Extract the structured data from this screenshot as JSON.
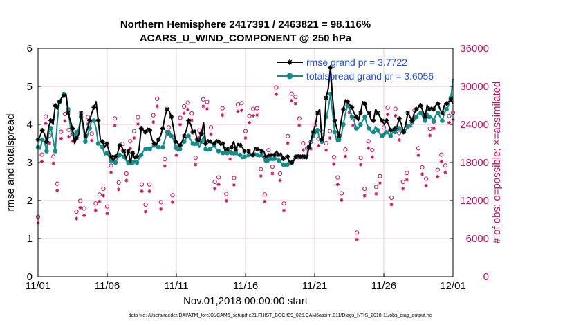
{
  "chart_data": {
    "type": "line",
    "title": [
      "Northern Hemisphere 2417391 / 2463821 = 98.116%",
      "ACARS_U_WIND_COMPONENT @ 250 hPa"
    ],
    "xlabel": "Nov.01,2018 00:00:00 start",
    "ylabel_left": "rmse and totalspread",
    "ylabel_right": "# of obs: o=possible; ×=assimilated",
    "x_ticks": [
      "11/01",
      "11/06",
      "11/11",
      "11/16",
      "11/21",
      "11/26",
      "12/01"
    ],
    "xlim_days": [
      0,
      30
    ],
    "ylim_left": [
      0,
      6
    ],
    "y_ticks_left": [
      "0",
      "1",
      "2",
      "3",
      "4",
      "5",
      "6"
    ],
    "ylim_right": [
      0,
      36000
    ],
    "y_ticks_right": [
      "0",
      "6000",
      "12000",
      "18000",
      "24000",
      "30000",
      "36000"
    ],
    "footnote": "data file: /Users/raeder/DAI/ATM_forcXX/CAM6_setup/f.e21.FHIST_BGC.f09_025.CAM6assim.011/Diags_NTrS_2018-11/obs_diag_output.nc",
    "colors": {
      "rmse": "#000000",
      "spread": "#138b8b",
      "obs": "#c0125e",
      "legend_text": "#1f4fe0"
    },
    "series": [
      {
        "name": "rmse",
        "legend": "rmse grand pr = 3.7722",
        "values": [
          3.6,
          3.7,
          3.85,
          3.75,
          3.55,
          3.95,
          4.1,
          4.0,
          4.5,
          4.4,
          4.6,
          4.7,
          4.75,
          4.8,
          4.3,
          4.1,
          3.9,
          3.5,
          3.65,
          3.75,
          4.3,
          4.0,
          3.7,
          3.9,
          4.1,
          4.3,
          4.45,
          4.6,
          4.1,
          3.6,
          3.55,
          3.4,
          3.5,
          3.3,
          3.15,
          3.05,
          3.15,
          3.25,
          3.45,
          3.4,
          3.3,
          3.1,
          3.3,
          3.0,
          3.25,
          3.1,
          3.15,
          3.35,
          3.9,
          3.85,
          3.8,
          3.9,
          3.85,
          3.6,
          3.5,
          3.45,
          3.6,
          3.7,
          3.9,
          4.2,
          4.4,
          4.35,
          4.2,
          3.9,
          3.55,
          3.5,
          3.45,
          3.55,
          3.7,
          3.85,
          4.1,
          4.0,
          3.8,
          3.85,
          3.6,
          3.55,
          3.75,
          4.05,
          3.5,
          3.6,
          3.55,
          3.5,
          3.5,
          3.6,
          3.55,
          3.45,
          3.5,
          3.3,
          3.35,
          3.35,
          3.4,
          3.55,
          3.35,
          3.5,
          3.45,
          3.4,
          3.3,
          3.3,
          3.3,
          3.2,
          3.2,
          3.4,
          3.35,
          3.35,
          3.3,
          3.3,
          3.15,
          3.2,
          3.2,
          3.2,
          3.2,
          3.3,
          3.2,
          3.25,
          3.1,
          3.1,
          3.15,
          3.0,
          3.0,
          3.05,
          3.15,
          3.2,
          3.15,
          3.2,
          3.15,
          3.1,
          3.4,
          3.6,
          3.8,
          4.0,
          4.3,
          4.4,
          3.6,
          3.7,
          4.7,
          4.95,
          5.5,
          4.7,
          4.1,
          3.9,
          3.7,
          4.1,
          4.4,
          4.65,
          4.6,
          4.5,
          4.45,
          4.3,
          4.2,
          4.1,
          4.3,
          4.6,
          4.55,
          4.35,
          4.3,
          4.1,
          4.1,
          4.4,
          4.3,
          4.2,
          4.1,
          4.0,
          4.1,
          4.0,
          3.85,
          3.85,
          3.9,
          3.95,
          4.15,
          4.0,
          3.8,
          4.0,
          4.3,
          4.2,
          4.1,
          4.3,
          4.4,
          4.45,
          4.5,
          4.35,
          4.2,
          4.5,
          4.4,
          4.45,
          4.4,
          4.5,
          4.55,
          4.4,
          4.3,
          4.5,
          4.55,
          4.6,
          4.65,
          4.55
        ],
        "markers": [
          3.6,
          3.7,
          3.85,
          3.75,
          3.55,
          3.95,
          4.1,
          4.0,
          4.5,
          4.4,
          4.6,
          4.7,
          4.75,
          4.8,
          4.3,
          4.1,
          3.9,
          3.5,
          3.65,
          3.75,
          4.3,
          4.0,
          3.7,
          3.9,
          4.1,
          4.3,
          4.45,
          4.6,
          4.1,
          3.6,
          3.55,
          3.4,
          3.5,
          3.3,
          3.15,
          3.05,
          3.15,
          3.25,
          3.45,
          3.4,
          3.3,
          3.1,
          3.3,
          3.0,
          3.25,
          3.1,
          3.15,
          3.35,
          3.9,
          3.85,
          3.8,
          3.9,
          3.85,
          3.6,
          3.5,
          3.45,
          3.6,
          3.7,
          3.9,
          4.2,
          4.4,
          4.35,
          4.2,
          3.9,
          3.55,
          3.5,
          3.45,
          3.55,
          3.7,
          3.85,
          4.1,
          4.0,
          3.8,
          3.85,
          3.6,
          3.55,
          3.75,
          4.05,
          3.5,
          3.6,
          3.55,
          3.5,
          3.5,
          3.6,
          3.55,
          3.45,
          3.5,
          3.3,
          3.35,
          3.35,
          3.4,
          3.55,
          3.35,
          3.5,
          3.45,
          3.4,
          3.3,
          3.3,
          3.3,
          3.2,
          3.2,
          3.4,
          3.35,
          3.35,
          3.3,
          3.3,
          3.15,
          3.2,
          3.2,
          3.2,
          3.2,
          3.3,
          3.2,
          3.25,
          3.1,
          3.1,
          3.15,
          3.0,
          3.0,
          3.05,
          3.15,
          3.2,
          3.15,
          3.2,
          3.15,
          3.1,
          3.4,
          3.6,
          3.8,
          4.0,
          4.3,
          4.4,
          3.6,
          3.7,
          4.7,
          4.95,
          5.5,
          4.7,
          4.1,
          3.9,
          3.7,
          4.1,
          4.4,
          4.65,
          4.6,
          4.5,
          4.45,
          4.3,
          4.2,
          4.1,
          4.3,
          4.6,
          4.55,
          4.35,
          4.3,
          4.1,
          4.1,
          4.4,
          4.3,
          4.2,
          4.1,
          4.0,
          4.1,
          4.0,
          3.85,
          3.85,
          3.9,
          3.95,
          4.15,
          4.0,
          3.8,
          4.0,
          4.3,
          4.2,
          4.1,
          4.3,
          4.4,
          4.45,
          4.5,
          4.35,
          4.2,
          4.5,
          4.4,
          4.45,
          4.4,
          4.5,
          4.55,
          4.4,
          4.3,
          4.5,
          4.55,
          4.6,
          4.65,
          4.55
        ]
      },
      {
        "name": "totalspread",
        "legend": "totalspread grand pr = 3.6056",
        "values": [
          3.4,
          3.35,
          3.6,
          3.55,
          3.3,
          3.8,
          3.9,
          3.6,
          3.3,
          4.1,
          4.6,
          4.7,
          4.8,
          4.8,
          4.4,
          3.95,
          3.75,
          3.6,
          3.8,
          3.9,
          4.2,
          3.9,
          3.55,
          3.7,
          3.9,
          4.1,
          4.1,
          3.9,
          3.5,
          3.45,
          3.4,
          3.2,
          3.25,
          3.15,
          3.05,
          3.05,
          3.0,
          3.1,
          3.2,
          3.2,
          3.15,
          3.05,
          3.0,
          2.95,
          3.0,
          3.05,
          3.0,
          3.1,
          3.2,
          3.3,
          3.35,
          3.4,
          3.35,
          3.4,
          3.45,
          3.4,
          3.4,
          3.4,
          3.4,
          3.6,
          3.8,
          3.85,
          3.7,
          3.6,
          3.4,
          3.3,
          3.35,
          3.45,
          3.55,
          3.65,
          3.7,
          3.6,
          3.5,
          3.45,
          3.5,
          3.4,
          3.55,
          3.7,
          3.35,
          3.3,
          3.35,
          3.4,
          3.45,
          3.35,
          3.3,
          3.3,
          3.25,
          3.25,
          3.25,
          3.3,
          3.25,
          3.2,
          3.25,
          3.2,
          3.2,
          3.1,
          3.15,
          3.15,
          3.2,
          3.2,
          3.2,
          3.25,
          3.2,
          3.15,
          3.2,
          3.1,
          3.05,
          3.0,
          3.1,
          3.05,
          3.1,
          3.1,
          3.05,
          3.0,
          2.95,
          2.9,
          2.95,
          2.95,
          3.0,
          3.1,
          3.15,
          3.1,
          3.15,
          3.1,
          3.15,
          3.2,
          3.4,
          3.55,
          3.7,
          3.75,
          3.85,
          3.6,
          3.55,
          3.8,
          4.2,
          4.4,
          4.8,
          4.3,
          3.8,
          3.55,
          3.6,
          3.7,
          4.0,
          4.3,
          4.5,
          4.4,
          4.2,
          4.1,
          3.9,
          3.9,
          4.0,
          4.1,
          4.2,
          4.0,
          3.9,
          3.8,
          3.8,
          3.95,
          3.85,
          3.75,
          3.7,
          3.7,
          3.8,
          3.75,
          3.7,
          3.8,
          3.8,
          3.85,
          3.9,
          3.85,
          3.8,
          3.85,
          3.95,
          3.95,
          4.05,
          4.1,
          4.2,
          4.3,
          4.3,
          4.2,
          4.1,
          4.3,
          4.2,
          4.2,
          4.1,
          4.25,
          4.3,
          4.2,
          4.1,
          4.3,
          4.4,
          4.5,
          4.7,
          5.2
        ]
      },
      {
        "name": "obs_possible",
        "values": [
          8900,
          18700,
          24700,
          21700,
          18400,
          14100,
          22300,
          25100,
          22600,
          21900,
          9700,
          11400,
          10200,
          24600,
          22000,
          11000,
          12400,
          13300,
          10500,
          17000,
          24400,
          14300,
          20400,
          15700,
          20800,
          22400,
          24600,
          14000,
          10800,
          14000,
          24900,
          27500,
          11200,
          18000,
          23000,
          12300,
          19700,
          24500,
          26300,
          26900,
          25200,
          18200,
          22500,
          27400,
          27000,
          23000,
          14400,
          15100,
          26000,
          12500,
          19100,
          15000,
          26600,
          26800,
          22400,
          24800,
          25900,
          26000,
          16400,
          12400,
          19400,
          16800,
          29300,
          15700,
          11000,
          21600,
          28300,
          27800,
          24400,
          20500,
          19700,
          20700,
          23300,
          21200,
          22300,
          20500,
          22400,
          18300,
          15100,
          12600,
          19500,
          26400,
          24400,
          6400,
          18200,
          13300,
          20800,
          19400,
          13600,
          15300,
          23000,
          26100,
          11900,
          25900,
          22100,
          14400,
          15800,
          24300,
          25700,
          19700,
          16700,
          14900,
          22800,
          23900,
          16300,
          18700,
          17000,
          24800,
          25300
        ],
        "markers": "circle"
      },
      {
        "name": "obs_assimilated",
        "values": [
          8900,
          18600,
          24600,
          21500,
          18300,
          14000,
          22200,
          25000,
          22500,
          21800,
          9600,
          11300,
          10100,
          24500,
          21900,
          10900,
          12300,
          13200,
          10400,
          16900,
          24300,
          14200,
          20300,
          15600,
          20700,
          22300,
          24500,
          13900,
          10700,
          13900,
          24800,
          27300,
          11100,
          17900,
          22900,
          12200,
          19600,
          24400,
          26200,
          26800,
          25100,
          18100,
          22400,
          27300,
          26900,
          22900,
          14300,
          15000,
          25900,
          12400,
          19000,
          14900,
          26500,
          26700,
          22300,
          24700,
          25800,
          25900,
          16300,
          12300,
          19300,
          16700,
          29200,
          15600,
          10900,
          21500,
          28200,
          27700,
          24300,
          20400,
          19600,
          20600,
          23200,
          21100,
          22200,
          20400,
          22300,
          18200,
          15000,
          12500,
          19400,
          26300,
          24300,
          6300,
          18100,
          13200,
          20700,
          19300,
          13500,
          15200,
          22900,
          26000,
          11800,
          25800,
          22000,
          14300,
          15700,
          24200,
          25600,
          19600,
          16600,
          14800,
          22700,
          23800,
          16200,
          18600,
          16900,
          24700,
          25200
        ],
        "markers": "asterisk"
      }
    ]
  }
}
